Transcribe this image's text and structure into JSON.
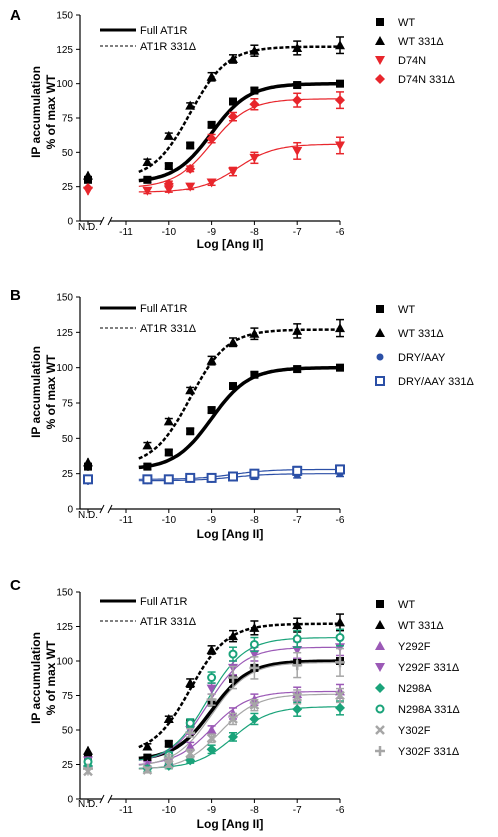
{
  "chart_data": [
    {
      "panel_label": "A",
      "type": "scatter",
      "xlabel": "Log [Ang II]",
      "ylabel": [
        "IP accumulation",
        "% of max WT"
      ],
      "ylim": [
        0,
        150
      ],
      "yticks": [
        0,
        25,
        50,
        75,
        100,
        125,
        150
      ],
      "xticks": [
        "-11",
        "-10",
        "-9",
        "-8",
        "-7",
        "-6"
      ],
      "xlim": [
        -11,
        -6
      ],
      "nd_label": "N.D.",
      "curve_legend": [
        {
          "label": "Full AT1R",
          "style": "solid"
        },
        {
          "label": "AT1R 331Δ",
          "style": "dashed"
        }
      ],
      "series": [
        {
          "name": "WT",
          "marker": "square",
          "color": "#000000",
          "curve": "solid",
          "nd": 30,
          "x": [
            -10.5,
            -10,
            -9.5,
            -9,
            -8.5,
            -8,
            -7,
            -6
          ],
          "y": [
            30,
            40,
            55,
            70,
            87,
            95,
            99,
            100
          ],
          "err": [
            2,
            2,
            2,
            2,
            2,
            2,
            2,
            2
          ],
          "fit": {
            "bottom": 28,
            "top": 100,
            "logec50": -9.0,
            "hill": 1
          }
        },
        {
          "name": "WT 331Δ",
          "marker": "triangle",
          "color": "#000000",
          "curve": "dashed",
          "nd": 33,
          "x": [
            -10.5,
            -10,
            -9.5,
            -9,
            -8.5,
            -8,
            -7,
            -6
          ],
          "y": [
            43,
            62,
            84,
            105,
            118,
            124,
            126,
            128
          ],
          "err": [
            2,
            2,
            2,
            3,
            3,
            4,
            5,
            6
          ],
          "fit": {
            "bottom": 30,
            "top": 127,
            "logec50": -9.5,
            "hill": 1
          }
        },
        {
          "name": "D74N",
          "marker": "triangle-down",
          "color": "#e8262c",
          "curve": "solid",
          "nd": 22,
          "x": [
            -10.5,
            -10,
            -9.5,
            -9,
            -8.5,
            -8,
            -7,
            -6
          ],
          "y": [
            22,
            23,
            25,
            28,
            36,
            46,
            51,
            55
          ],
          "err": [
            2,
            2,
            2,
            2,
            3,
            4,
            6,
            6
          ],
          "fit": {
            "bottom": 21,
            "top": 56,
            "logec50": -8.4,
            "hill": 1
          }
        },
        {
          "name": "D74N 331Δ",
          "marker": "diamond",
          "color": "#e8262c",
          "curve": "solid",
          "nd": 24,
          "x": [
            -10,
            -9.5,
            -9,
            -8.5,
            -8,
            -7,
            -6
          ],
          "y": [
            27,
            38,
            60,
            76,
            85,
            88,
            88
          ],
          "err": [
            2,
            2,
            3,
            3,
            4,
            5,
            6
          ],
          "fit": {
            "bottom": 24,
            "top": 89,
            "logec50": -9.0,
            "hill": 1
          }
        }
      ]
    },
    {
      "panel_label": "B",
      "type": "scatter",
      "xlabel": "Log [Ang II]",
      "ylabel": [
        "IP accumulation",
        "% of max WT"
      ],
      "ylim": [
        0,
        150
      ],
      "yticks": [
        0,
        25,
        50,
        75,
        100,
        125,
        150
      ],
      "xticks": [
        "-11",
        "-10",
        "-9",
        "-8",
        "-7",
        "-6"
      ],
      "xlim": [
        -11,
        -6
      ],
      "nd_label": "N.D.",
      "curve_legend": [
        {
          "label": "Full AT1R",
          "style": "solid"
        },
        {
          "label": "AT1R 331Δ",
          "style": "dashed"
        }
      ],
      "series": [
        {
          "name": "WT",
          "marker": "square",
          "color": "#000000",
          "curve": "solid",
          "nd": 30,
          "x": [
            -10.5,
            -10,
            -9.5,
            -9,
            -8.5,
            -8,
            -7,
            -6
          ],
          "y": [
            30,
            40,
            55,
            70,
            87,
            95,
            99,
            100
          ],
          "err": [
            2,
            2,
            2,
            2,
            2,
            2,
            2,
            2
          ],
          "fit": {
            "bottom": 28,
            "top": 100,
            "logec50": -9.0,
            "hill": 1
          }
        },
        {
          "name": "WT 331Δ",
          "marker": "triangle",
          "color": "#000000",
          "curve": "dashed",
          "nd": 33,
          "x": [
            -10.5,
            -10,
            -9.5,
            -9,
            -8.5,
            -8,
            -7,
            -6
          ],
          "y": [
            45,
            62,
            84,
            105,
            118,
            124,
            126,
            128
          ],
          "err": [
            2,
            2,
            2,
            3,
            3,
            4,
            5,
            6
          ],
          "fit": {
            "bottom": 30,
            "top": 127,
            "logec50": -9.5,
            "hill": 1
          }
        },
        {
          "name": "DRY/AAY",
          "marker": "circle",
          "color": "#2b4fa6",
          "curve": "solid",
          "nd": 20,
          "x": [
            -10.5,
            -10,
            -9.5,
            -9,
            -8.5,
            -8,
            -7,
            -6
          ],
          "y": [
            20,
            21,
            21,
            21,
            22,
            23,
            24,
            25
          ],
          "err": [
            1,
            1,
            1,
            1,
            1,
            2,
            2,
            2
          ],
          "fit": {
            "bottom": 20,
            "top": 25,
            "logec50": -8.5,
            "hill": 1
          }
        },
        {
          "name": "DRY/AAY 331Δ",
          "marker": "square-open",
          "color": "#2b4fa6",
          "curve": "solid",
          "nd": 21,
          "x": [
            -10.5,
            -10,
            -9.5,
            -9,
            -8.5,
            -8,
            -7,
            -6
          ],
          "y": [
            21,
            21,
            22,
            22,
            23,
            25,
            27,
            28
          ],
          "err": [
            1,
            1,
            1,
            1,
            2,
            2,
            3,
            3
          ],
          "fit": {
            "bottom": 21,
            "top": 28,
            "logec50": -8.5,
            "hill": 1
          }
        }
      ]
    },
    {
      "panel_label": "C",
      "type": "scatter",
      "xlabel": "Log [Ang II]",
      "ylabel": [
        "IP accumulation",
        "% of max WT"
      ],
      "ylim": [
        0,
        150
      ],
      "yticks": [
        0,
        25,
        50,
        75,
        100,
        125,
        150
      ],
      "xticks": [
        "-11",
        "-10",
        "-9",
        "-8",
        "-7",
        "-6"
      ],
      "xlim": [
        -11,
        -6
      ],
      "nd_label": "N.D.",
      "curve_legend": [
        {
          "label": "Full AT1R",
          "style": "solid"
        },
        {
          "label": "AT1R 331Δ",
          "style": "dashed"
        }
      ],
      "series": [
        {
          "name": "WT",
          "marker": "square",
          "color": "#000000",
          "curve": "solid",
          "nd": 30,
          "x": [
            -10.5,
            -10,
            -9.5,
            -9,
            -8.5,
            -8,
            -7,
            -6
          ],
          "y": [
            30,
            40,
            55,
            70,
            87,
            95,
            99,
            100
          ],
          "err": [
            2,
            2,
            2,
            2,
            2,
            2,
            2,
            2
          ],
          "fit": {
            "bottom": 28,
            "top": 100,
            "logec50": -9.0,
            "hill": 1
          }
        },
        {
          "name": "WT 331Δ",
          "marker": "triangle",
          "color": "#000000",
          "curve": "dashed",
          "nd": 35,
          "x": [
            -10.5,
            -10,
            -9.5,
            -9,
            -8.5,
            -8,
            -7,
            -6
          ],
          "y": [
            38,
            58,
            84,
            108,
            118,
            124,
            126,
            128
          ],
          "err": [
            2,
            2,
            3,
            3,
            4,
            5,
            5,
            6
          ],
          "fit": {
            "bottom": 32,
            "top": 127,
            "logec50": -9.5,
            "hill": 1
          }
        },
        {
          "name": "Y292F",
          "marker": "triangle",
          "color": "#9b59b6",
          "curve": "solid",
          "nd": 26,
          "x": [
            -10.5,
            -10,
            -9.5,
            -9,
            -8.5,
            -8,
            -7,
            -6
          ],
          "y": [
            25,
            27,
            38,
            50,
            62,
            72,
            76,
            78
          ],
          "err": [
            2,
            2,
            3,
            3,
            4,
            4,
            5,
            5
          ],
          "fit": {
            "bottom": 24,
            "top": 78,
            "logec50": -9.0,
            "hill": 1
          }
        },
        {
          "name": "Y292F 331Δ",
          "marker": "triangle-down",
          "color": "#9b59b6",
          "curve": "solid",
          "nd": 28,
          "x": [
            -10,
            -9.5,
            -9,
            -8.5,
            -8,
            -7,
            -6
          ],
          "y": [
            32,
            50,
            80,
            95,
            105,
            108,
            110
          ],
          "err": [
            2,
            3,
            4,
            5,
            5,
            6,
            6
          ],
          "fit": {
            "bottom": 26,
            "top": 110,
            "logec50": -9.1,
            "hill": 1
          }
        },
        {
          "name": "N298A",
          "marker": "diamond",
          "color": "#1aa37a",
          "curve": "solid",
          "nd": 24,
          "x": [
            -10.5,
            -10,
            -9.5,
            -9,
            -8.5,
            -8,
            -7,
            -6
          ],
          "y": [
            22,
            24,
            28,
            36,
            45,
            58,
            65,
            66
          ],
          "err": [
            2,
            2,
            2,
            3,
            3,
            4,
            5,
            5
          ],
          "fit": {
            "bottom": 22,
            "top": 67,
            "logec50": -8.5,
            "hill": 1
          }
        },
        {
          "name": "N298A 331Δ",
          "marker": "circle-open",
          "color": "#1aa37a",
          "curve": "solid",
          "nd": 27,
          "x": [
            -10,
            -9.5,
            -9,
            -8.5,
            -8,
            -7,
            -6
          ],
          "y": [
            32,
            55,
            88,
            105,
            112,
            116,
            117
          ],
          "err": [
            2,
            3,
            4,
            5,
            5,
            6,
            6
          ],
          "fit": {
            "bottom": 26,
            "top": 117,
            "logec50": -9.1,
            "hill": 1
          }
        },
        {
          "name": "Y302F",
          "marker": "x",
          "color": "#a6a6a6",
          "curve": "solid",
          "nd": 20,
          "x": [
            -10.5,
            -10,
            -9.5,
            -9,
            -8.5,
            -8,
            -7,
            -6
          ],
          "y": [
            21,
            25,
            33,
            44,
            58,
            68,
            74,
            75
          ],
          "err": [
            2,
            2,
            3,
            3,
            4,
            4,
            5,
            5
          ],
          "fit": {
            "bottom": 21,
            "top": 76,
            "logec50": -8.8,
            "hill": 1
          }
        },
        {
          "name": "Y302F 331Δ",
          "marker": "plus",
          "color": "#a6a6a6",
          "curve": "solid",
          "nd": 22,
          "x": [
            -10,
            -9.5,
            -9,
            -8.5,
            -8,
            -7,
            -6
          ],
          "y": [
            30,
            48,
            72,
            88,
            95,
            97,
            99
          ],
          "err": [
            2,
            3,
            4,
            8,
            8,
            9,
            10
          ],
          "fit": {
            "bottom": 23,
            "top": 99,
            "logec50": -9.0,
            "hill": 1
          }
        }
      ]
    }
  ]
}
